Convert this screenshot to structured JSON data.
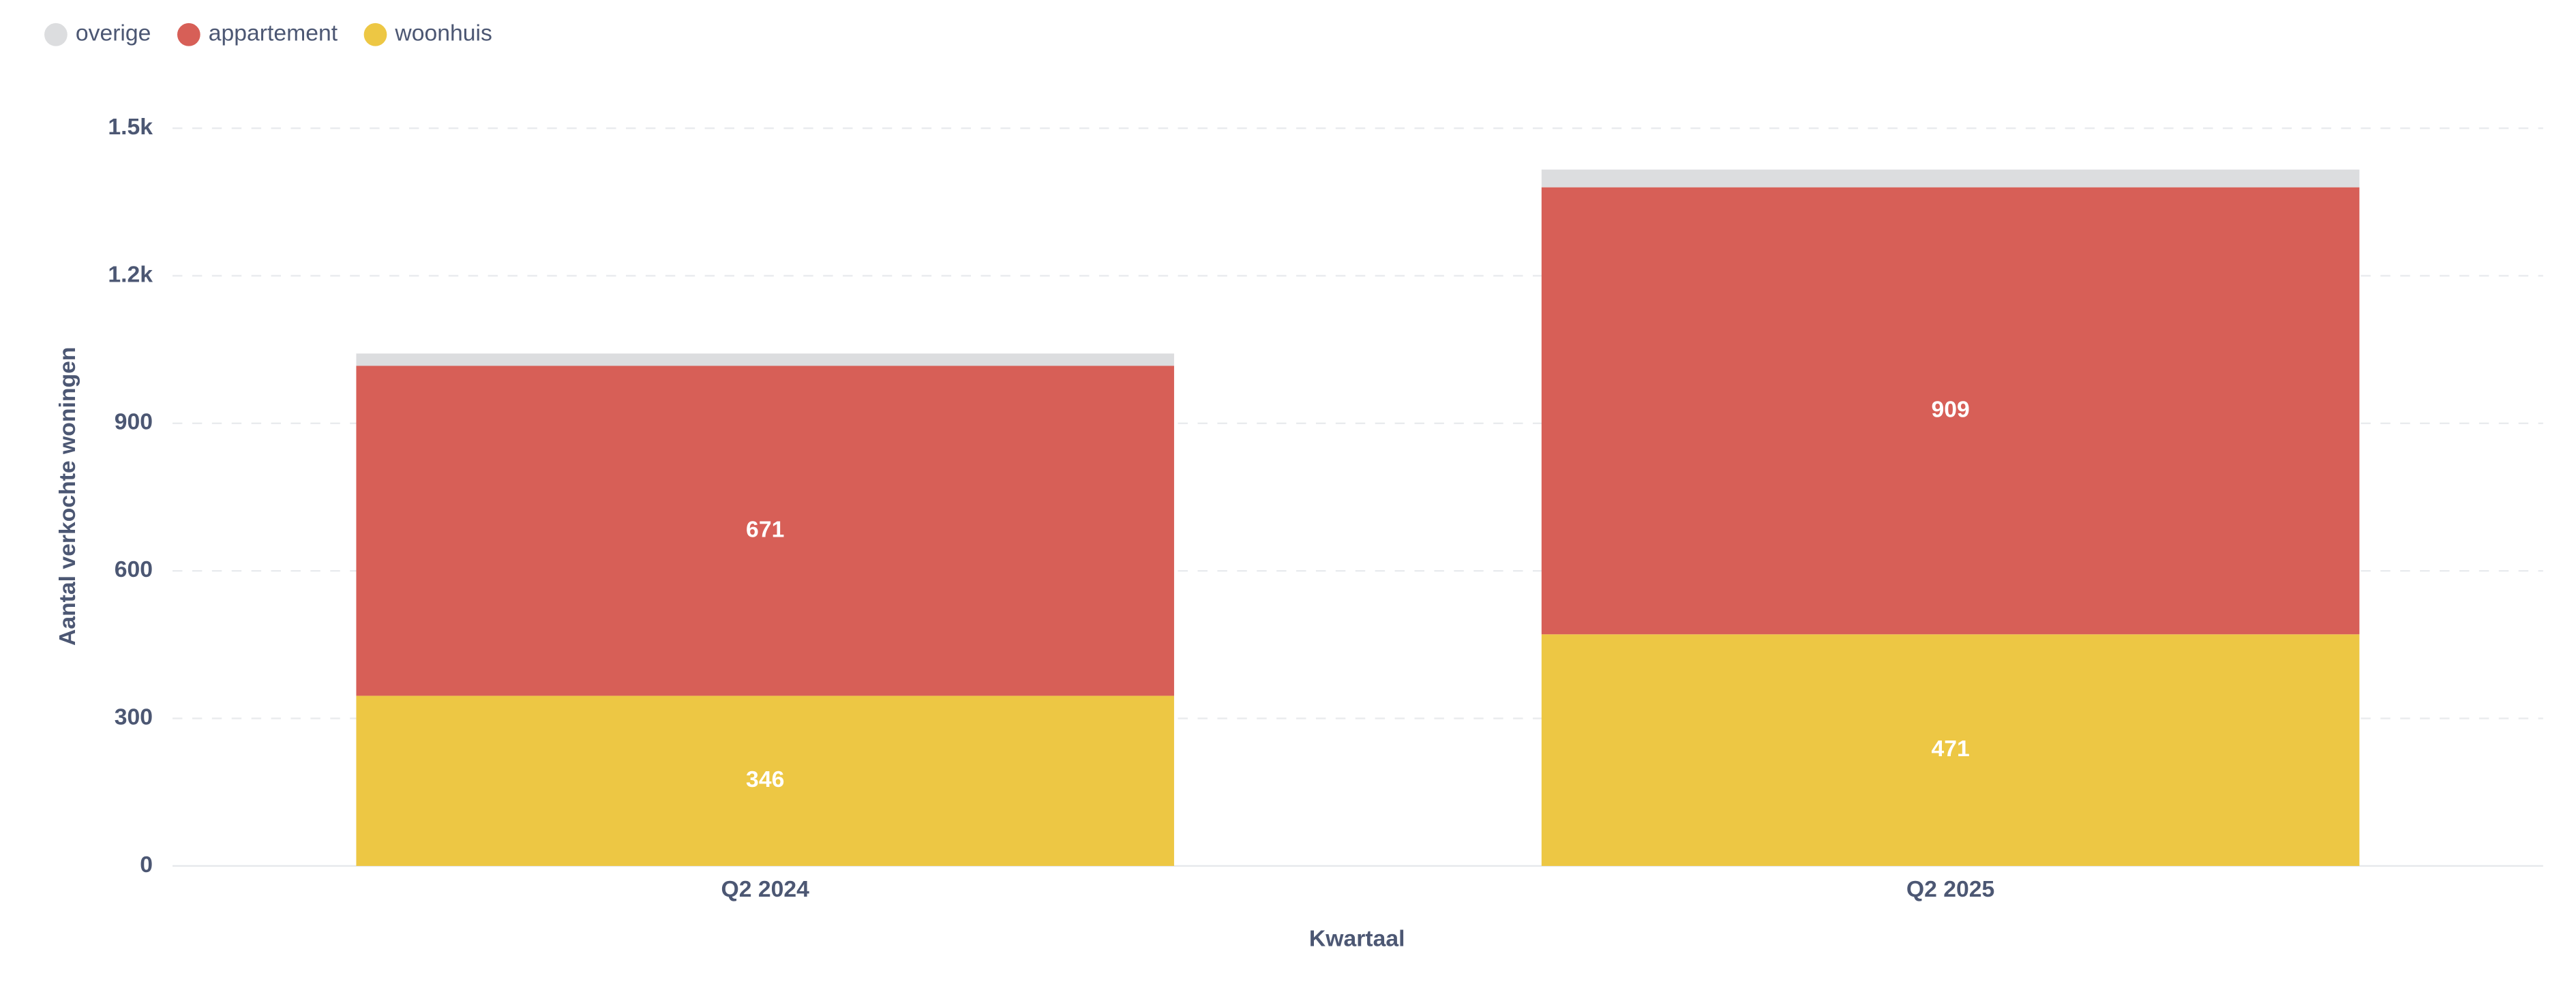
{
  "chart_data": {
    "type": "stacked_bar",
    "x_label": "Kwartaal",
    "y_label": "Aantal verkochte woningen",
    "categories": [
      "Q2 2024",
      "Q2 2025"
    ],
    "series": [
      {
        "name": "overige",
        "color": "#dcdddf",
        "values": [
          25,
          36
        ],
        "labels": false
      },
      {
        "name": "appartement",
        "color": "#d75f57",
        "values": [
          671,
          909
        ],
        "labels": true
      },
      {
        "name": "woonhuis",
        "color": "#edc744",
        "values": [
          346,
          471
        ],
        "labels": true
      }
    ],
    "ylim": [
      0,
      1500
    ],
    "yticks": [
      0,
      300,
      600,
      900,
      {
        "value": 1200,
        "label": "1.2k"
      },
      {
        "value": 1500,
        "label": "1.5k"
      }
    ],
    "grid": true,
    "legend": "top-left"
  }
}
